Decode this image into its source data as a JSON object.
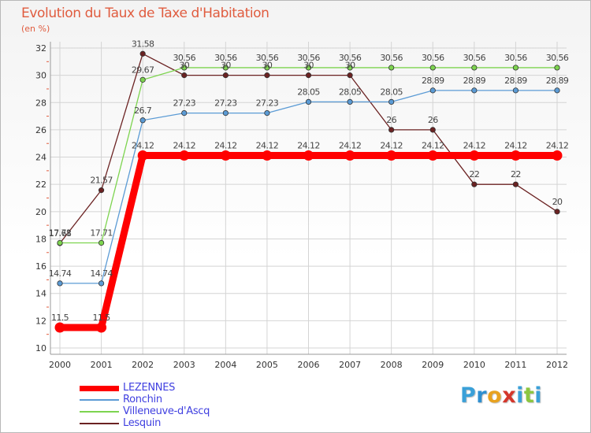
{
  "chart_data": {
    "type": "line",
    "title": "Evolution du Taux de Taxe d'Habitation",
    "ylabel": "(en %)",
    "xlabel": "",
    "categories": [
      "2000",
      "2001",
      "2002",
      "2003",
      "2004",
      "2005",
      "2006",
      "2007",
      "2008",
      "2009",
      "2010",
      "2011",
      "2012"
    ],
    "ylim": [
      10,
      32
    ],
    "yticks": [
      10,
      12,
      14,
      16,
      18,
      20,
      22,
      24,
      26,
      28,
      30,
      32
    ],
    "grid": true,
    "series": [
      {
        "name": "LEZENNES",
        "color": "#ff0000",
        "values": [
          11.5,
          11.5,
          24.12,
          24.12,
          24.12,
          24.12,
          24.12,
          24.12,
          24.12,
          24.12,
          24.12,
          24.12,
          24.12
        ],
        "labels": [
          "11.5",
          "11.5",
          "24.12",
          "24.12",
          "24.12",
          "24.12",
          "24.12",
          "24.12",
          "24.12",
          "24.12",
          "24.12",
          "24.12",
          "24.12"
        ]
      },
      {
        "name": "Ronchin",
        "color": "#5b9bd5",
        "values": [
          14.74,
          14.74,
          26.7,
          27.23,
          27.23,
          27.23,
          28.05,
          28.05,
          28.05,
          28.89,
          28.89,
          28.89,
          28.89
        ],
        "labels": [
          "14.74",
          "14.74",
          "26.7",
          "27.23",
          "27.23",
          "27.23",
          "28.05",
          "28.05",
          "28.05",
          "28.89",
          "28.89",
          "28.89",
          "28.89"
        ]
      },
      {
        "name": "Villeneuve-d'Ascq",
        "color": "#7dd44f",
        "values": [
          17.71,
          17.71,
          29.67,
          30.56,
          30.56,
          30.56,
          30.56,
          30.56,
          30.56,
          30.56,
          30.56,
          30.56,
          30.56
        ],
        "labels": [
          "17.71",
          "17.71",
          "29.67",
          "30.56",
          "30.56",
          "30.56",
          "30.56",
          "30.56",
          "30.56",
          "30.56",
          "30.56",
          "30.56",
          "30.56"
        ]
      },
      {
        "name": "Lesquin",
        "color": "#6b2222",
        "values": [
          17.68,
          21.57,
          31.58,
          30,
          30,
          30,
          30,
          30,
          26,
          26,
          22,
          22,
          20
        ],
        "labels": [
          "17.68",
          "21.57",
          "31.58",
          "30",
          "30",
          "30",
          "30",
          "30",
          "26",
          "26",
          "22",
          "22",
          "20"
        ]
      }
    ],
    "legend_position": "bottom-left"
  },
  "logo": {
    "letters": [
      "P",
      "r",
      "o",
      "x",
      "i",
      "t",
      "i"
    ],
    "colors": [
      "#3aa0d8",
      "#2e8fd0",
      "#e8a21f",
      "#d4372c",
      "#3aa0d8",
      "#8cc63f",
      "#3aa0d8"
    ]
  }
}
